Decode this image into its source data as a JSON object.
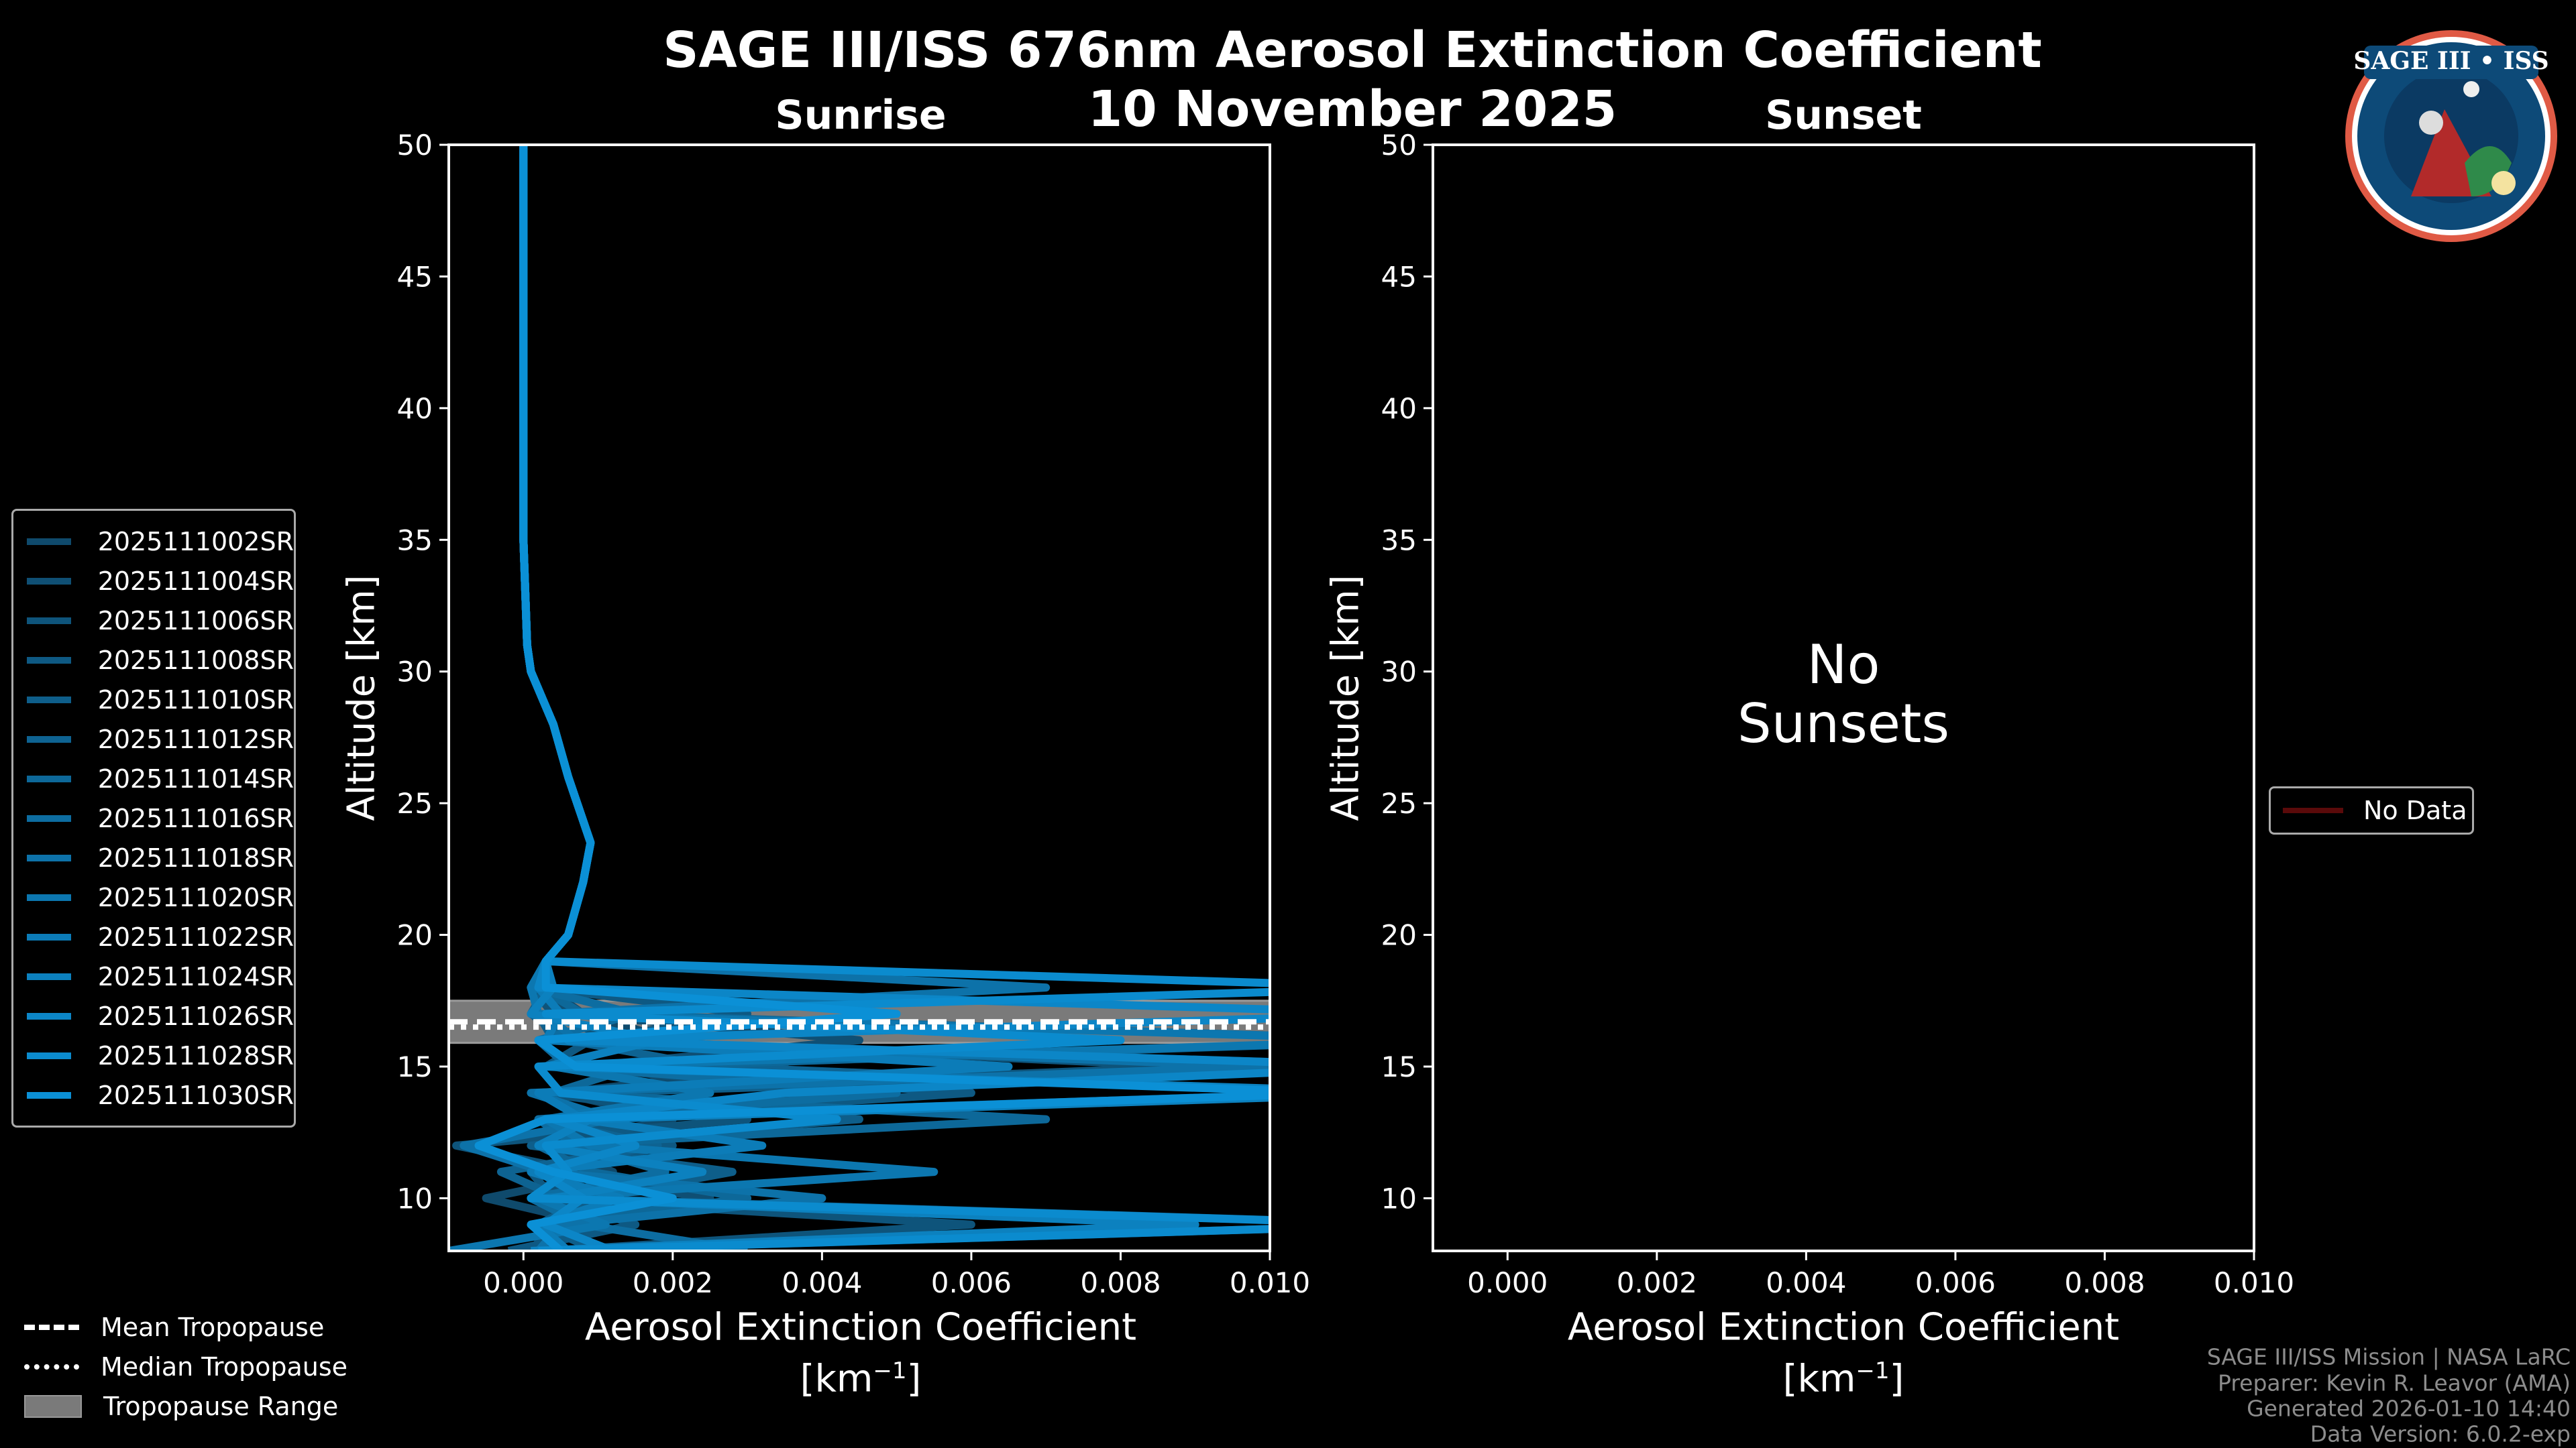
{
  "title": "SAGE III/ISS 676nm Aerosol Extinction Coefficient",
  "date": "10 November 2025",
  "logo_text": "SAGE III • ISS",
  "panels": {
    "sunrise": {
      "title": "Sunrise"
    },
    "sunset": {
      "title": "Sunset",
      "no_data_line1": "No",
      "no_data_line2": "Sunsets",
      "legend_label": "No Data",
      "legend_color": "#5a0a0a"
    }
  },
  "axes": {
    "ylabel": "Altitude [km]",
    "xlabel_line1": "Aerosol Extinction Coefficient",
    "xlabel_unit": "[km",
    "xlabel_exp": "−1",
    "xlabel_close": "]"
  },
  "tropopause_legend": [
    {
      "label": "Mean Tropopause",
      "style": "dashed"
    },
    {
      "label": "Median Tropopause",
      "style": "dotted"
    },
    {
      "label": "Tropopause Range",
      "style": "band"
    }
  ],
  "footer": [
    "SAGE III/ISS Mission | NASA LaRC",
    "Preparer: Kevin R. Leavor (AMA)",
    "Generated 2026-01-10 14:40",
    "Data Version: 6.0.2-exp"
  ],
  "chart_data": {
    "type": "line",
    "xlim": [
      -0.001,
      0.01
    ],
    "ylim": [
      8,
      50
    ],
    "xticks": [
      "0.000",
      "0.002",
      "0.004",
      "0.006",
      "0.008",
      "0.010"
    ],
    "xtick_values": [
      0,
      0.002,
      0.004,
      0.006,
      0.008,
      0.01
    ],
    "yticks": [
      10,
      15,
      20,
      25,
      30,
      35,
      40,
      45,
      50
    ],
    "tropopause": {
      "mean_km": 16.7,
      "median_km": 16.5,
      "range_km": [
        15.9,
        17.5
      ],
      "band_color": "#7a7a7a"
    },
    "altitude_km": [
      8,
      9,
      10,
      11,
      12,
      13,
      14,
      15,
      16,
      17,
      18,
      19,
      20,
      22,
      23.5,
      26,
      28,
      30,
      31,
      35,
      40,
      50
    ],
    "color_start": "#0f4a6c",
    "color_end": "#0b90d6",
    "series": [
      {
        "name": "2025111002SR",
        "values": [
          0.0002,
          0.001,
          -0.0005,
          0.0012,
          0.0003,
          0.002,
          0.0005,
          0.0035,
          0.002,
          0.0008,
          0.0003,
          0.0003,
          0.0006,
          0.0008,
          0.0009,
          0.0006,
          0.0004,
          0.0001,
          5e-05,
          0,
          0,
          0
        ]
      },
      {
        "name": "2025111004SR",
        "values": [
          0.0001,
          0.0004,
          0.0025,
          0.0002,
          0.0011,
          0.0004,
          0.004,
          0.0008,
          0.0045,
          0.0006,
          0.0002,
          0.0003,
          0.0006,
          0.0008,
          0.0009,
          0.0006,
          0.0004,
          0.0001,
          5e-05,
          0,
          0,
          0
        ]
      },
      {
        "name": "2025111006SR",
        "values": [
          0.0003,
          0.006,
          0.0001,
          0.0008,
          -0.0009,
          0.003,
          0.0002,
          0.009,
          0.0012,
          0.0004,
          0.0001,
          0.0003,
          0.0006,
          0.0008,
          0.0009,
          0.0006,
          0.0004,
          0.0001,
          5e-05,
          0,
          0,
          0
        ]
      },
      {
        "name": "2025111008SR",
        "values": [
          -0.0002,
          0.0015,
          0.0004,
          0.0001,
          0.002,
          0.0006,
          0.006,
          0.0003,
          0.0009,
          0.003,
          0.0002,
          0.0003,
          0.0006,
          0.0008,
          0.0009,
          0.0006,
          0.0004,
          0.0001,
          5e-05,
          0,
          0,
          0
        ]
      },
      {
        "name": "2025111010SR",
        "values": [
          0.001,
          0.0002,
          0.0009,
          0.0028,
          0.0001,
          0.0045,
          0.0008,
          0.012,
          0.0004,
          0.0002,
          0.0001,
          0.0003,
          0.0006,
          0.0008,
          0.0009,
          0.0006,
          0.0004,
          0.0001,
          5e-05,
          0,
          0,
          0
        ]
      },
      {
        "name": "2025111012SR",
        "values": [
          0.0001,
          0.012,
          0.0005,
          -0.0003,
          0.0018,
          0.0002,
          0.011,
          0.0025,
          0.0006,
          0.0001,
          0.0003,
          0.0003,
          0.0006,
          0.0008,
          0.0009,
          0.0006,
          0.0004,
          0.0001,
          5e-05,
          0,
          0,
          0
        ]
      },
      {
        "name": "2025111014SR",
        "values": [
          0.0004,
          0.0003,
          0.003,
          0.0009,
          0.0002,
          0.007,
          0.0004,
          0.0015,
          0.012,
          0.0008,
          0.0002,
          0.0003,
          0.0006,
          0.0008,
          0.0009,
          0.0006,
          0.0004,
          0.0001,
          5e-05,
          0,
          0,
          0
        ]
      },
      {
        "name": "2025111016SR",
        "values": [
          0.003,
          0.0008,
          0.0001,
          0.0019,
          0.0007,
          0.0002,
          0.005,
          0.0006,
          0.0002,
          0.0015,
          0.0001,
          0.0003,
          0.0006,
          0.0008,
          0.0009,
          0.0006,
          0.0004,
          0.0001,
          5e-05,
          0,
          0,
          0
        ]
      },
      {
        "name": "2025111018SR",
        "values": [
          0.0002,
          0.0005,
          0.004,
          0.0003,
          -0.0008,
          0.0012,
          0.0001,
          0.01,
          0.0007,
          0.0003,
          0.007,
          0.0003,
          0.0006,
          0.0008,
          0.0009,
          0.0006,
          0.0004,
          0.0001,
          5e-05,
          0,
          0,
          0
        ]
      },
      {
        "name": "2025111020SR",
        "values": [
          -0.001,
          0.0011,
          0.0002,
          0.0055,
          0.0009,
          0.0003,
          0.0025,
          0.0004,
          0.012,
          0.0002,
          0.0001,
          0.0003,
          0.0006,
          0.0008,
          0.0009,
          0.0006,
          0.0004,
          0.0001,
          5e-05,
          0,
          0,
          0
        ]
      },
      {
        "name": "2025111022SR",
        "values": [
          0.0006,
          0.0002,
          0.0013,
          0.0001,
          0.0032,
          0.0008,
          0.0002,
          0.0065,
          0.0003,
          0.0005,
          0.0002,
          0.0003,
          0.0006,
          0.0008,
          0.0009,
          0.0006,
          0.0004,
          0.0001,
          5e-05,
          0,
          0,
          0
        ]
      },
      {
        "name": "2025111024SR",
        "values": [
          0.0001,
          0.009,
          0.0004,
          0.0024,
          0.0002,
          0.0009,
          0.012,
          0.0003,
          0.0018,
          0.0001,
          0.0004,
          0.0003,
          0.0006,
          0.0008,
          0.0009,
          0.0006,
          0.0004,
          0.0001,
          5e-05,
          0,
          0,
          0
        ]
      },
      {
        "name": "2025111026SR",
        "values": [
          0.0012,
          0.0003,
          0.0008,
          0.0002,
          0.0015,
          0.0004,
          0.0035,
          0.012,
          0.0006,
          0.012,
          0.0002,
          0.0003,
          0.0006,
          0.0008,
          0.0009,
          0.0006,
          0.0004,
          0.0001,
          5e-05,
          0,
          0,
          0
        ]
      },
      {
        "name": "2025111028SR",
        "values": [
          0.0002,
          0.012,
          0.0001,
          0.0006,
          0.0003,
          0.0042,
          0.0005,
          0.0002,
          0.008,
          0.0003,
          0.012,
          0.0003,
          0.0006,
          0.0008,
          0.0009,
          0.0006,
          0.0004,
          0.0001,
          5e-05,
          0,
          0,
          0
        ]
      },
      {
        "name": "2025111030SR",
        "values": [
          0.0005,
          0.0001,
          0.002,
          0.0004,
          -0.0006,
          0.0003,
          0.011,
          0.0007,
          0.0002,
          0.005,
          0.0003,
          0.0003,
          0.0006,
          0.0008,
          0.0009,
          0.0006,
          0.0004,
          0.0001,
          5e-05,
          0,
          0,
          0
        ]
      }
    ]
  }
}
